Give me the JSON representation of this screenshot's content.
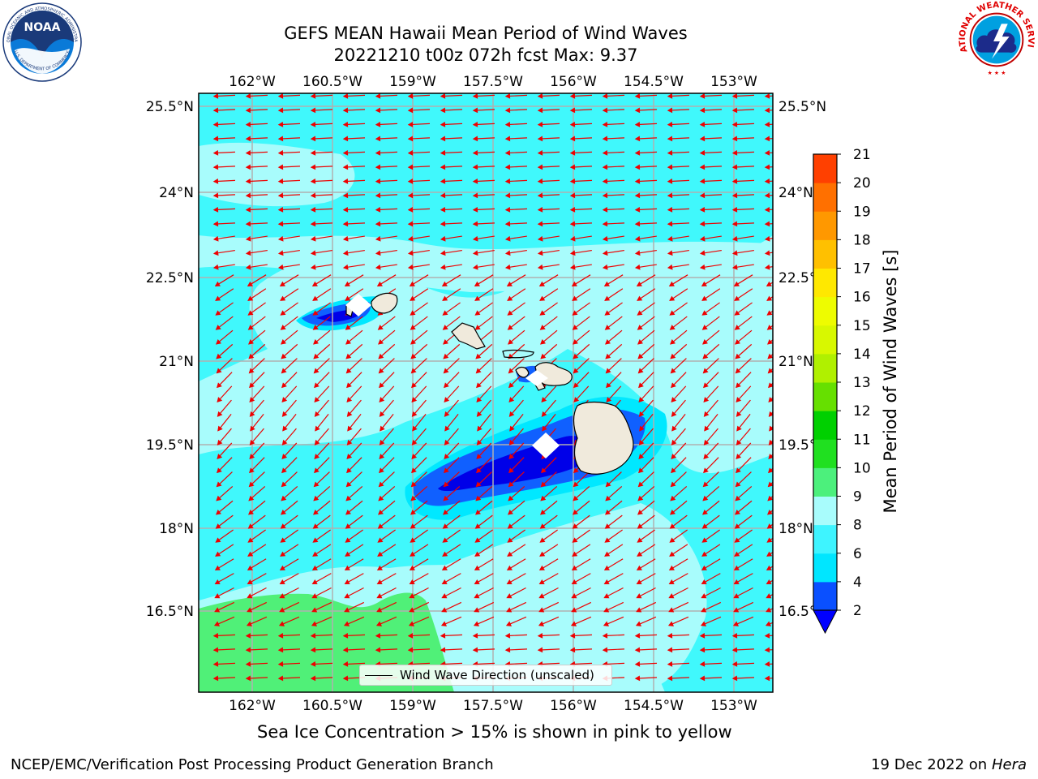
{
  "title_line1": "GEFS MEAN Hawaii Mean Period of Wind Waves",
  "title_line2": "20221210 t00z 072h fcst   Max: 9.37",
  "longitude_ticks": [
    "162°W",
    "160.5°W",
    "159°W",
    "157.5°W",
    "156°W",
    "154.5°W",
    "153°W"
  ],
  "latitude_ticks": [
    "25.5°N",
    "24°N",
    "22.5°N",
    "21°N",
    "19.5°N",
    "18°N",
    "16.5°N"
  ],
  "legend_label": "Wind Wave Direction (unscaled)",
  "colorbar": {
    "label": "Mean Period of Wind Waves [s]",
    "ticks": [
      "2",
      "4",
      "6",
      "8",
      "9",
      "10",
      "11",
      "12",
      "13",
      "14",
      "15",
      "16",
      "17",
      "18",
      "19",
      "20",
      "21"
    ],
    "colors": [
      "#0a50ff",
      "#00e6ff",
      "#3ef4ff",
      "#a8fcfc",
      "#4cf07c",
      "#20e020",
      "#00d000",
      "#66e000",
      "#b0f000",
      "#d8f800",
      "#eefc00",
      "#ffe800",
      "#ffc000",
      "#ff9800",
      "#ff7000",
      "#ff4000",
      "#ff0000"
    ],
    "under_color": "#0000ff"
  },
  "field_colors": {
    "period_8_9": "#a8fcfc",
    "period_6_8": "#40f8fc",
    "period_4_6": "#00e8ff",
    "period_2_4": "#1060ff",
    "period_lt2": "#0000e8",
    "period_9_10": "#50f078",
    "land": "#f0eadc",
    "arrows": "#ee0000"
  },
  "sea_ice_note": "Sea Ice Concentration > 15% is shown in pink to yellow",
  "footer_left": "NCEP/EMC/Verification Post Processing Product Generation Branch",
  "footer_right_date": "19 Dec 2022 on",
  "footer_right_machine": "Hera",
  "logos": {
    "left": "NOAA",
    "left_ring_top": "NATIONAL OCEANIC AND ATMOSPHERIC ADMINISTRATION",
    "left_ring_bottom": "U.S. DEPARTMENT OF COMMERCE",
    "right_ring": "NATIONAL WEATHER SERVICE"
  }
}
